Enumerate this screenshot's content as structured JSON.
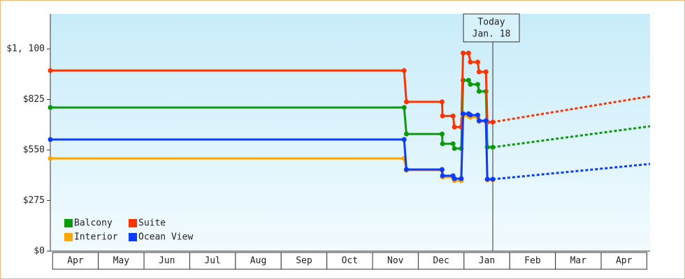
{
  "chart_data": {
    "type": "line",
    "categories": [
      "Apr",
      "May",
      "Jun",
      "Jul",
      "Aug",
      "Sep",
      "Oct",
      "Nov",
      "Dec",
      "Jan",
      "Feb",
      "Mar",
      "Apr"
    ],
    "xlim": [
      -0.05,
      13.07
    ],
    "ylim": [
      0,
      1290
    ],
    "yticks": [
      {
        "value": 0,
        "label": "$0"
      },
      {
        "value": 275,
        "label": "$275"
      },
      {
        "value": 550,
        "label": "$550"
      },
      {
        "value": 825,
        "label": "$825"
      },
      {
        "value": 1100,
        "label": "$1, 100"
      }
    ],
    "today": {
      "x": 9.63,
      "label": "Today",
      "date": "Jan. 18"
    },
    "series": [
      {
        "name": "Balcony",
        "color": "#0a9a0a",
        "x": [
          -0.05,
          7.69,
          7.74,
          8.52,
          8.53,
          8.76,
          8.79,
          8.94,
          8.98,
          9.1,
          9.14,
          9.3,
          9.33,
          9.48,
          9.51,
          9.63
        ],
        "values": [
          781,
          781,
          637,
          637,
          584,
          584,
          558,
          558,
          929,
          929,
          907,
          907,
          869,
          869,
          565,
          565
        ],
        "forecast_x": [
          9.63,
          13.07
        ],
        "forecast_values": [
          565,
          679
        ]
      },
      {
        "name": "Suite",
        "color": "#ff3300",
        "x": [
          -0.05,
          7.69,
          7.74,
          8.52,
          8.53,
          8.76,
          8.79,
          8.94,
          8.98,
          9.1,
          9.14,
          9.3,
          9.33,
          9.48,
          9.51,
          9.63
        ],
        "values": [
          982,
          982,
          812,
          812,
          735,
          735,
          675,
          675,
          1077,
          1077,
          1028,
          1028,
          975,
          975,
          702,
          702
        ],
        "forecast_x": [
          9.63,
          13.07
        ],
        "forecast_values": [
          702,
          842
        ]
      },
      {
        "name": "Interior",
        "color": "#ffa500",
        "x": [
          -0.05,
          7.69,
          7.74,
          8.52,
          8.53,
          8.76,
          8.79,
          8.94,
          8.98,
          9.1,
          9.14,
          9.3,
          9.33,
          9.48,
          9.51,
          9.63
        ],
        "values": [
          504,
          504,
          440,
          440,
          402,
          402,
          383,
          383,
          736,
          736,
          728,
          728,
          705,
          705,
          387,
          387
        ]
      },
      {
        "name": "Ocean View",
        "color": "#0a3cff",
        "x": [
          -0.05,
          7.69,
          7.74,
          8.52,
          8.53,
          8.76,
          8.79,
          8.94,
          8.98,
          9.1,
          9.14,
          9.3,
          9.33,
          9.48,
          9.51,
          9.63
        ],
        "values": [
          607,
          607,
          444,
          444,
          410,
          410,
          394,
          394,
          747,
          747,
          740,
          740,
          709,
          709,
          391,
          391
        ],
        "forecast_x": [
          9.63,
          13.07
        ],
        "forecast_values": [
          391,
          474
        ]
      }
    ]
  }
}
